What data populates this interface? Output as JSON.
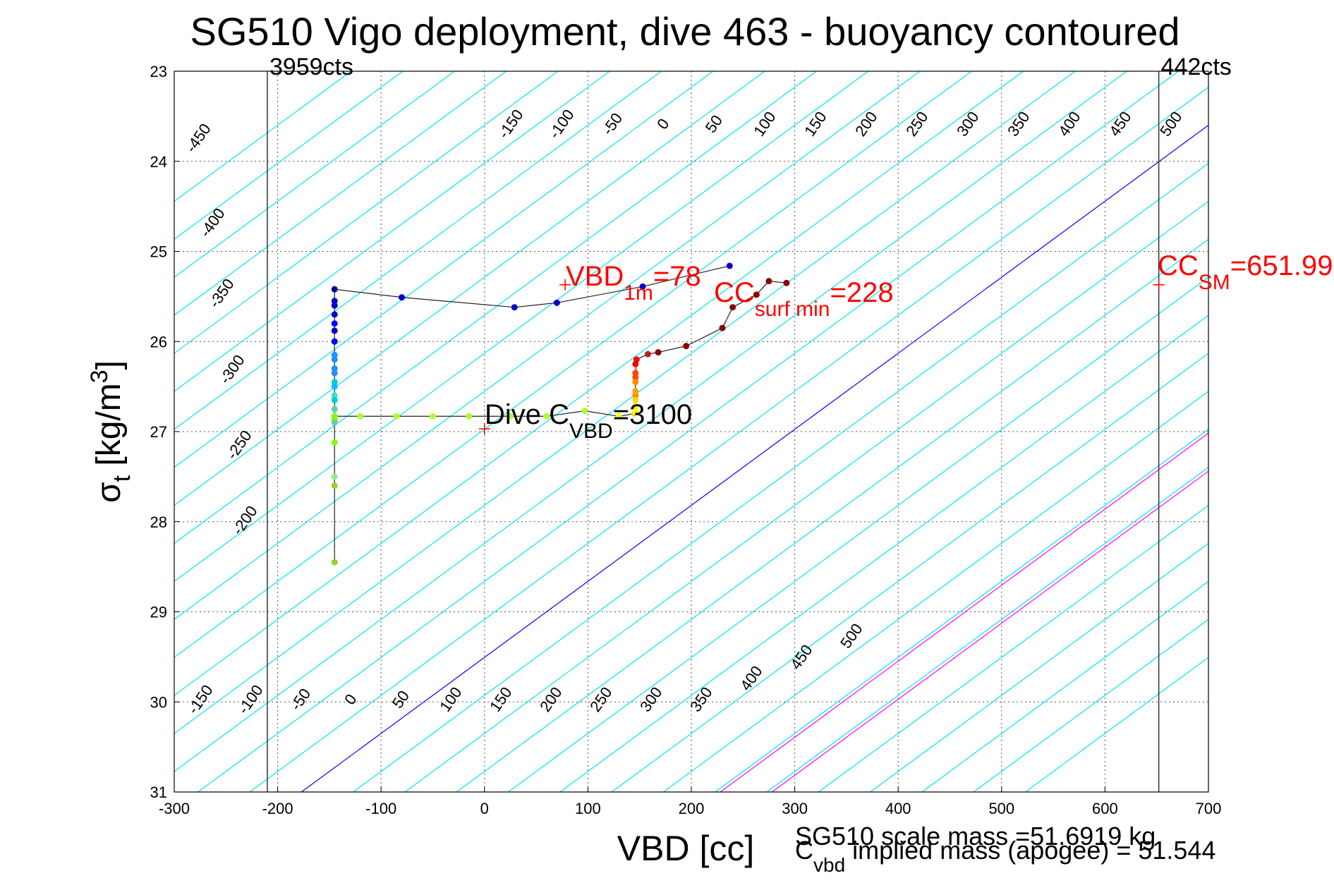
{
  "chart_data": {
    "type": "scatter",
    "title": "SG510 Vigo deployment, dive 463 - buoyancy contoured",
    "xlabel": "VBD [cc]",
    "ylabel_main": "σ",
    "ylabel_sub": "t",
    "ylabel_units": " [kg/m",
    "ylabel_sup": "3",
    "ylabel_close": "]",
    "xlim": [
      -300,
      700
    ],
    "ylim": [
      31,
      23
    ],
    "y_reversed": true,
    "xticks": [
      "-300",
      "-200",
      "-100",
      "0",
      "100",
      "200",
      "300",
      "400",
      "500",
      "600",
      "700"
    ],
    "yticks": [
      "23",
      "24",
      "25",
      "26",
      "27",
      "28",
      "29",
      "30",
      "31"
    ],
    "grid": true,
    "vertical_lines": [
      {
        "x": -210,
        "label": "3959cts"
      },
      {
        "x": 652,
        "label": "442cts"
      }
    ],
    "contours": {
      "line_spacing": 50,
      "colors": {
        "default": "#00e5ee",
        "zero": "#0000ff",
        "highlight": "#ff00ff"
      },
      "highlight_values": [
        228,
        278
      ],
      "top_labels": [
        "-450",
        "-400",
        "-350",
        "-300",
        "-250",
        "-200",
        "-150",
        "-100",
        "-50",
        "0",
        "50",
        "100",
        "150",
        "200",
        "250",
        "300",
        "350",
        "400",
        "450",
        "500"
      ],
      "bottom_labels": [
        "-150",
        "-100",
        "-50",
        "0",
        "50",
        "100",
        "150",
        "200",
        "250",
        "300",
        "350",
        "400",
        "450",
        "500"
      ]
    },
    "markers": [
      {
        "x": 78,
        "y": 25.37,
        "color": "#ff0000"
      },
      {
        "x": 0,
        "y": 26.97,
        "color": "#ff0000"
      },
      {
        "x": 652,
        "y": 25.37,
        "color": "#ff0000"
      }
    ],
    "annotations": {
      "vbd1m": {
        "main": "VBD",
        "sub": "1m",
        "rest": "=78"
      },
      "ccsurf": {
        "main": "CC",
        "sub": "surf min",
        "rest": "=228"
      },
      "ccsm": {
        "main": "CC",
        "sub": "SM",
        "rest": "=651.99"
      },
      "divec": {
        "main": "Dive C",
        "sub": "VBD",
        "rest": "=3100"
      }
    },
    "footer": {
      "scale_mass": "SG510 scale mass =51.6919 kg",
      "implied_main": "C",
      "implied_sub": "vbd",
      "implied_rest": " implied mass (apogee) = 51.544"
    },
    "series": [
      {
        "points": [
          [
            -145,
            28.45
          ],
          [
            -145,
            27.6
          ],
          [
            -145,
            27.5
          ],
          [
            -145,
            27.12
          ],
          [
            -145,
            26.87
          ],
          [
            -145,
            26.75
          ],
          [
            -145,
            26.6
          ],
          [
            -145,
            26.45
          ],
          [
            -145,
            26.3
          ],
          [
            -145,
            26.15
          ],
          [
            -145,
            26.0
          ],
          [
            -145,
            25.88
          ],
          [
            -145,
            25.7
          ],
          [
            -145,
            25.55
          ],
          [
            -145,
            25.42
          ],
          [
            -80,
            25.51
          ],
          [
            29,
            25.62
          ],
          [
            70,
            25.57
          ],
          [
            153,
            25.39
          ],
          [
            237,
            25.16
          ]
        ],
        "colors": [
          "#9acd32",
          "#9acd32",
          "#90ee90",
          "#7fff00",
          "#7cfc00",
          "#66cdaa",
          "#40e0d0",
          "#00ced1",
          "#1e90ff",
          "#1e90ff",
          "#0000ff",
          "#0000cd",
          "#0000cd",
          "#0000cd",
          "#00008b",
          "#0000cd",
          "#0000cd",
          "#0000cd",
          "#0000cd",
          "#0000cd"
        ]
      },
      {
        "points": [
          [
            -145,
            26.83
          ],
          [
            -120,
            26.83
          ],
          [
            -85,
            26.83
          ],
          [
            -50,
            26.83
          ],
          [
            -15,
            26.83
          ],
          [
            25,
            26.83
          ],
          [
            60,
            26.83
          ],
          [
            97,
            26.77
          ],
          [
            130,
            26.83
          ],
          [
            145,
            26.8
          ],
          [
            146,
            26.6
          ],
          [
            146,
            26.4
          ],
          [
            147,
            26.2
          ],
          [
            158,
            26.14
          ],
          [
            168,
            26.12
          ],
          [
            195,
            26.05
          ],
          [
            230,
            25.85
          ],
          [
            240,
            25.62
          ],
          [
            263,
            25.48
          ],
          [
            275,
            25.33
          ],
          [
            292,
            25.35
          ]
        ],
        "colors": [
          "#7fff00",
          "#adff2f",
          "#adff2f",
          "#adff2f",
          "#adff2f",
          "#adff2f",
          "#adff2f",
          "#adff2f",
          "#ffff00",
          "#ffd700",
          "#ff8c00",
          "#ff4500",
          "#ff0000",
          "#b22222",
          "#8b0000",
          "#8b0000",
          "#8b0000",
          "#8b0000",
          "#8b0000",
          "#8b0000",
          "#8b0000"
        ]
      }
    ]
  }
}
